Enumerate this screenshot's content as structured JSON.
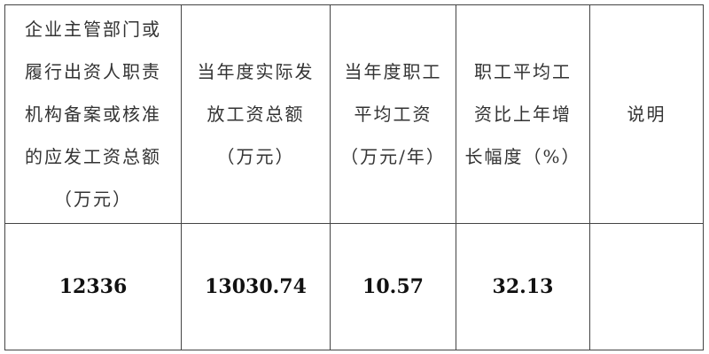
{
  "table": {
    "headers": [
      {
        "lines": [
          "企业主管部门或",
          "履行出资人职责",
          "机构备案或核准",
          "的应发工资总额",
          "（万元）"
        ]
      },
      {
        "lines": [
          "当年度实际发",
          "放工资总额",
          "（万元）"
        ]
      },
      {
        "lines": [
          "当年度职工",
          "平均工资",
          "（万元/年）"
        ]
      },
      {
        "lines": [
          "职工平均工",
          "资比上年增",
          "长幅度（%）"
        ]
      },
      {
        "lines": [
          "说明"
        ]
      }
    ],
    "row": [
      "12336",
      "13030.74",
      "10.57",
      "32.13",
      ""
    ]
  }
}
